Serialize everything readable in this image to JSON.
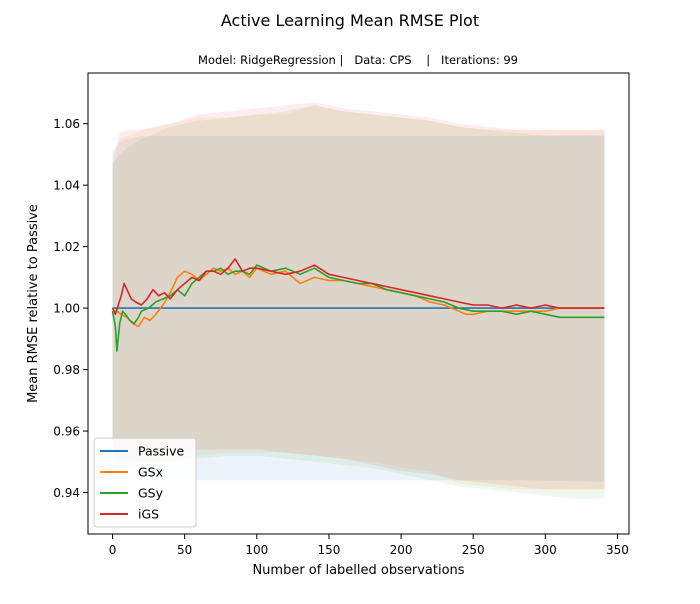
{
  "chart_data": {
    "type": "line",
    "title": "Active Learning Mean RMSE Plot",
    "subtitle": "Model: RidgeRegression |   Data: CPS    |   Iterations: 99",
    "xlabel": "Number of labelled observations",
    "ylabel": "Mean RMSE relative to Passive",
    "xlim": [
      -17,
      358
    ],
    "ylim": [
      0.9265,
      1.0765
    ],
    "xticks": [
      0,
      50,
      100,
      150,
      200,
      250,
      300,
      350
    ],
    "yticks": [
      0.94,
      0.96,
      0.98,
      1.0,
      1.02,
      1.04,
      1.06
    ],
    "ytick_labels": [
      "0.94",
      "0.96",
      "0.98",
      "1.00",
      "1.02",
      "1.04",
      "1.06"
    ],
    "legend_position": "lower-left",
    "series": [
      {
        "name": "Passive",
        "color": "#1f77b4",
        "points": [
          [
            0,
            1.0
          ],
          [
            341,
            1.0
          ]
        ],
        "band_upper": [
          [
            0,
            1.051
          ],
          [
            3,
            1.053
          ],
          [
            5,
            1.054
          ],
          [
            10,
            1.055
          ],
          [
            20,
            1.056
          ],
          [
            40,
            1.056
          ],
          [
            80,
            1.056
          ],
          [
            120,
            1.056
          ],
          [
            160,
            1.056
          ],
          [
            200,
            1.056
          ],
          [
            240,
            1.056
          ],
          [
            280,
            1.056
          ],
          [
            341,
            1.0565
          ]
        ],
        "band_lower": [
          [
            0,
            0.948
          ],
          [
            3,
            0.946
          ],
          [
            5,
            0.9455
          ],
          [
            10,
            0.9445
          ],
          [
            20,
            0.944
          ],
          [
            40,
            0.944
          ],
          [
            80,
            0.944
          ],
          [
            120,
            0.944
          ],
          [
            160,
            0.944
          ],
          [
            200,
            0.944
          ],
          [
            240,
            0.944
          ],
          [
            280,
            0.944
          ],
          [
            341,
            0.9435
          ]
        ]
      },
      {
        "name": "GSx",
        "color": "#ff7f0e",
        "points": [
          [
            0,
            0.999
          ],
          [
            3,
            0.999
          ],
          [
            6,
            0.998
          ],
          [
            10,
            0.997
          ],
          [
            14,
            0.995
          ],
          [
            18,
            0.994
          ],
          [
            22,
            0.997
          ],
          [
            26,
            0.996
          ],
          [
            30,
            0.998
          ],
          [
            35,
            1.001
          ],
          [
            40,
            1.005
          ],
          [
            45,
            1.01
          ],
          [
            50,
            1.012
          ],
          [
            55,
            1.011
          ],
          [
            60,
            1.009
          ],
          [
            65,
            1.011
          ],
          [
            70,
            1.013
          ],
          [
            75,
            1.012
          ],
          [
            80,
            1.013
          ],
          [
            85,
            1.011
          ],
          [
            90,
            1.012
          ],
          [
            95,
            1.01
          ],
          [
            100,
            1.013
          ],
          [
            110,
            1.011
          ],
          [
            120,
            1.012
          ],
          [
            130,
            1.008
          ],
          [
            140,
            1.01
          ],
          [
            150,
            1.009
          ],
          [
            160,
            1.009
          ],
          [
            170,
            1.008
          ],
          [
            180,
            1.007
          ],
          [
            190,
            1.006
          ],
          [
            200,
            1.005
          ],
          [
            210,
            1.004
          ],
          [
            220,
            1.002
          ],
          [
            230,
            1.001
          ],
          [
            240,
            0.999
          ],
          [
            245,
            0.998
          ],
          [
            250,
            0.998
          ],
          [
            260,
            0.999
          ],
          [
            270,
            0.999
          ],
          [
            280,
            0.999
          ],
          [
            290,
            0.999
          ],
          [
            300,
            0.999
          ],
          [
            310,
            1.0
          ],
          [
            320,
            1.0
          ],
          [
            330,
            1.0
          ],
          [
            341,
            1.0
          ]
        ],
        "band_upper": [
          [
            0,
            1.045
          ],
          [
            5,
            1.055
          ],
          [
            10,
            1.056
          ],
          [
            20,
            1.058
          ],
          [
            40,
            1.06
          ],
          [
            60,
            1.062
          ],
          [
            80,
            1.062
          ],
          [
            100,
            1.063
          ],
          [
            120,
            1.063
          ],
          [
            140,
            1.066
          ],
          [
            160,
            1.064
          ],
          [
            180,
            1.063
          ],
          [
            200,
            1.062
          ],
          [
            220,
            1.061
          ],
          [
            240,
            1.059
          ],
          [
            260,
            1.058
          ],
          [
            280,
            1.058
          ],
          [
            300,
            1.058
          ],
          [
            320,
            1.058
          ],
          [
            341,
            1.058
          ]
        ],
        "band_lower": [
          [
            0,
            0.952
          ],
          [
            5,
            0.951
          ],
          [
            10,
            0.95
          ],
          [
            20,
            0.95
          ],
          [
            40,
            0.95
          ],
          [
            60,
            0.952
          ],
          [
            80,
            0.953
          ],
          [
            100,
            0.953
          ],
          [
            120,
            0.953
          ],
          [
            140,
            0.952
          ],
          [
            160,
            0.951
          ],
          [
            180,
            0.95
          ],
          [
            200,
            0.948
          ],
          [
            220,
            0.947
          ],
          [
            240,
            0.943
          ],
          [
            260,
            0.942
          ],
          [
            280,
            0.941
          ],
          [
            300,
            0.941
          ],
          [
            320,
            0.941
          ],
          [
            341,
            0.941
          ]
        ]
      },
      {
        "name": "GSy",
        "color": "#2ca02c",
        "points": [
          [
            0,
            0.999
          ],
          [
            2,
            0.994
          ],
          [
            3,
            0.986
          ],
          [
            5,
            0.995
          ],
          [
            7,
            0.999
          ],
          [
            9,
            0.998
          ],
          [
            12,
            0.996
          ],
          [
            15,
            0.995
          ],
          [
            18,
            0.997
          ],
          [
            20,
            0.999
          ],
          [
            25,
            1.0
          ],
          [
            30,
            1.002
          ],
          [
            35,
            1.003
          ],
          [
            40,
            1.004
          ],
          [
            45,
            1.006
          ],
          [
            50,
            1.004
          ],
          [
            55,
            1.008
          ],
          [
            60,
            1.01
          ],
          [
            65,
            1.012
          ],
          [
            70,
            1.012
          ],
          [
            75,
            1.013
          ],
          [
            80,
            1.011
          ],
          [
            85,
            1.012
          ],
          [
            90,
            1.012
          ],
          [
            95,
            1.011
          ],
          [
            100,
            1.014
          ],
          [
            110,
            1.012
          ],
          [
            120,
            1.013
          ],
          [
            130,
            1.011
          ],
          [
            140,
            1.013
          ],
          [
            150,
            1.01
          ],
          [
            160,
            1.009
          ],
          [
            170,
            1.008
          ],
          [
            180,
            1.008
          ],
          [
            190,
            1.006
          ],
          [
            200,
            1.005
          ],
          [
            210,
            1.004
          ],
          [
            220,
            1.003
          ],
          [
            230,
            1.002
          ],
          [
            240,
            1.0
          ],
          [
            250,
            0.999
          ],
          [
            260,
            0.999
          ],
          [
            270,
            0.999
          ],
          [
            280,
            0.998
          ],
          [
            290,
            0.999
          ],
          [
            300,
            0.998
          ],
          [
            310,
            0.997
          ],
          [
            320,
            0.997
          ],
          [
            330,
            0.997
          ],
          [
            341,
            0.997
          ]
        ],
        "band_upper": [
          [
            0,
            1.047
          ],
          [
            5,
            1.05
          ],
          [
            10,
            1.052
          ],
          [
            20,
            1.055
          ],
          [
            40,
            1.059
          ],
          [
            60,
            1.061
          ],
          [
            80,
            1.062
          ],
          [
            100,
            1.063
          ],
          [
            120,
            1.064
          ],
          [
            140,
            1.066
          ],
          [
            160,
            1.064
          ],
          [
            180,
            1.063
          ],
          [
            200,
            1.062
          ],
          [
            220,
            1.061
          ],
          [
            240,
            1.059
          ],
          [
            260,
            1.058
          ],
          [
            280,
            1.057
          ],
          [
            300,
            1.056
          ],
          [
            320,
            1.056
          ],
          [
            341,
            1.056
          ]
        ],
        "band_lower": [
          [
            0,
            0.952
          ],
          [
            5,
            0.948
          ],
          [
            10,
            0.948
          ],
          [
            20,
            0.949
          ],
          [
            40,
            0.95
          ],
          [
            60,
            0.951
          ],
          [
            80,
            0.952
          ],
          [
            100,
            0.952
          ],
          [
            120,
            0.951
          ],
          [
            140,
            0.95
          ],
          [
            160,
            0.949
          ],
          [
            180,
            0.948
          ],
          [
            200,
            0.946
          ],
          [
            220,
            0.944
          ],
          [
            240,
            0.942
          ],
          [
            260,
            0.941
          ],
          [
            280,
            0.94
          ],
          [
            300,
            0.939
          ],
          [
            320,
            0.938
          ],
          [
            341,
            0.938
          ]
        ]
      },
      {
        "name": "iGS",
        "color": "#d62728",
        "points": [
          [
            0,
            1.0
          ],
          [
            2,
            0.998
          ],
          [
            4,
            1.001
          ],
          [
            6,
            1.004
          ],
          [
            8,
            1.008
          ],
          [
            10,
            1.006
          ],
          [
            13,
            1.003
          ],
          [
            16,
            1.002
          ],
          [
            20,
            1.001
          ],
          [
            24,
            1.003
          ],
          [
            28,
            1.006
          ],
          [
            32,
            1.004
          ],
          [
            36,
            1.005
          ],
          [
            40,
            1.003
          ],
          [
            45,
            1.006
          ],
          [
            50,
            1.008
          ],
          [
            55,
            1.01
          ],
          [
            60,
            1.009
          ],
          [
            65,
            1.012
          ],
          [
            70,
            1.012
          ],
          [
            75,
            1.011
          ],
          [
            80,
            1.013
          ],
          [
            85,
            1.016
          ],
          [
            90,
            1.012
          ],
          [
            95,
            1.013
          ],
          [
            100,
            1.013
          ],
          [
            110,
            1.012
          ],
          [
            120,
            1.011
          ],
          [
            130,
            1.012
          ],
          [
            140,
            1.014
          ],
          [
            150,
            1.011
          ],
          [
            160,
            1.01
          ],
          [
            170,
            1.009
          ],
          [
            180,
            1.008
          ],
          [
            190,
            1.007
          ],
          [
            200,
            1.006
          ],
          [
            210,
            1.005
          ],
          [
            220,
            1.004
          ],
          [
            230,
            1.003
          ],
          [
            240,
            1.002
          ],
          [
            250,
            1.001
          ],
          [
            260,
            1.001
          ],
          [
            270,
            1.0
          ],
          [
            280,
            1.001
          ],
          [
            290,
            1.0
          ],
          [
            300,
            1.001
          ],
          [
            310,
            1.0
          ],
          [
            320,
            1.0
          ],
          [
            330,
            1.0
          ],
          [
            341,
            1.0
          ]
        ],
        "band_upper": [
          [
            0,
            1.048
          ],
          [
            5,
            1.057
          ],
          [
            10,
            1.058
          ],
          [
            20,
            1.058
          ],
          [
            40,
            1.06
          ],
          [
            60,
            1.063
          ],
          [
            80,
            1.064
          ],
          [
            100,
            1.065
          ],
          [
            120,
            1.066
          ],
          [
            140,
            1.067
          ],
          [
            160,
            1.065
          ],
          [
            180,
            1.064
          ],
          [
            200,
            1.063
          ],
          [
            220,
            1.062
          ],
          [
            240,
            1.06
          ],
          [
            260,
            1.059
          ],
          [
            280,
            1.058
          ],
          [
            300,
            1.058
          ],
          [
            320,
            1.058
          ],
          [
            341,
            1.058
          ]
        ],
        "band_lower": [
          [
            0,
            0.953
          ],
          [
            5,
            0.951
          ],
          [
            10,
            0.951
          ],
          [
            20,
            0.952
          ],
          [
            40,
            0.953
          ],
          [
            60,
            0.954
          ],
          [
            80,
            0.954
          ],
          [
            100,
            0.954
          ],
          [
            120,
            0.953
          ],
          [
            140,
            0.952
          ],
          [
            160,
            0.951
          ],
          [
            180,
            0.949
          ],
          [
            200,
            0.947
          ],
          [
            220,
            0.946
          ],
          [
            240,
            0.944
          ],
          [
            260,
            0.943
          ],
          [
            280,
            0.942
          ],
          [
            300,
            0.941
          ],
          [
            320,
            0.941
          ],
          [
            341,
            0.941
          ]
        ]
      }
    ]
  }
}
